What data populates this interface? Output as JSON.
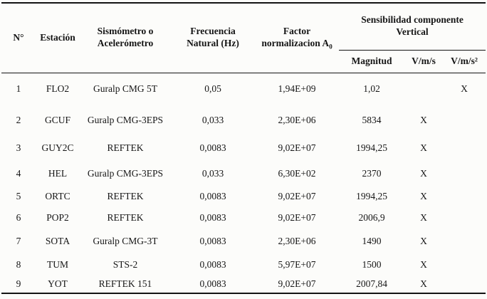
{
  "table": {
    "header": {
      "col_num": "N°",
      "col_station": "Estación",
      "col_sensor_line1": "Sismómetro o",
      "col_sensor_line2": "Acelerómetro",
      "col_freq_line1": "Frecuencia",
      "col_freq_line2": "Natural (Hz)",
      "col_factor_line1": "Factor",
      "col_factor_line2": "normalizacion A",
      "col_factor_sub": "0",
      "group_line1": "Sensibilidad componente",
      "group_line2": "Vertical",
      "sub_magnitude": "Magnitud",
      "sub_vms": "V/m/s",
      "sub_vms2": "V/m/s²"
    },
    "column_keys": [
      "num",
      "estacion",
      "sismometro",
      "frecuencia",
      "factor",
      "magnitud",
      "vms",
      "vms2"
    ],
    "rows": [
      [
        "1",
        "FLO2",
        "Guralp CMG 5T",
        "0,05",
        "1,94E+09",
        "1,02",
        "",
        "X"
      ],
      [
        "2",
        "GCUF",
        "Guralp CMG-3EPS",
        "0,033",
        "2,30E+06",
        "5834",
        "X",
        ""
      ],
      [
        "3",
        "GUY2C",
        "REFTEK",
        "0,0083",
        "9,02E+07",
        "1994,25",
        "X",
        ""
      ],
      [
        "4",
        "HEL",
        "Guralp CMG-3EPS",
        "0,033",
        "6,30E+02",
        "2370",
        "X",
        ""
      ],
      [
        "5",
        "ORTC",
        "REFTEK",
        "0,0083",
        "9,02E+07",
        "1994,25",
        "X",
        ""
      ],
      [
        "6",
        "POP2",
        "REFTEK",
        "0,0083",
        "9,02E+07",
        "2006,9",
        "X",
        ""
      ],
      [
        "7",
        "SOTA",
        "Guralp CMG-3T",
        "0,0083",
        "2,30E+06",
        "1490",
        "X",
        ""
      ],
      [
        "8",
        "TUM",
        "STS-2",
        "0,0083",
        "5,97E+07",
        "1500",
        "X",
        ""
      ],
      [
        "9",
        "YOT",
        "REFTEK 151",
        "0,0083",
        "9,02E+07",
        "2007,84",
        "X",
        ""
      ]
    ]
  }
}
